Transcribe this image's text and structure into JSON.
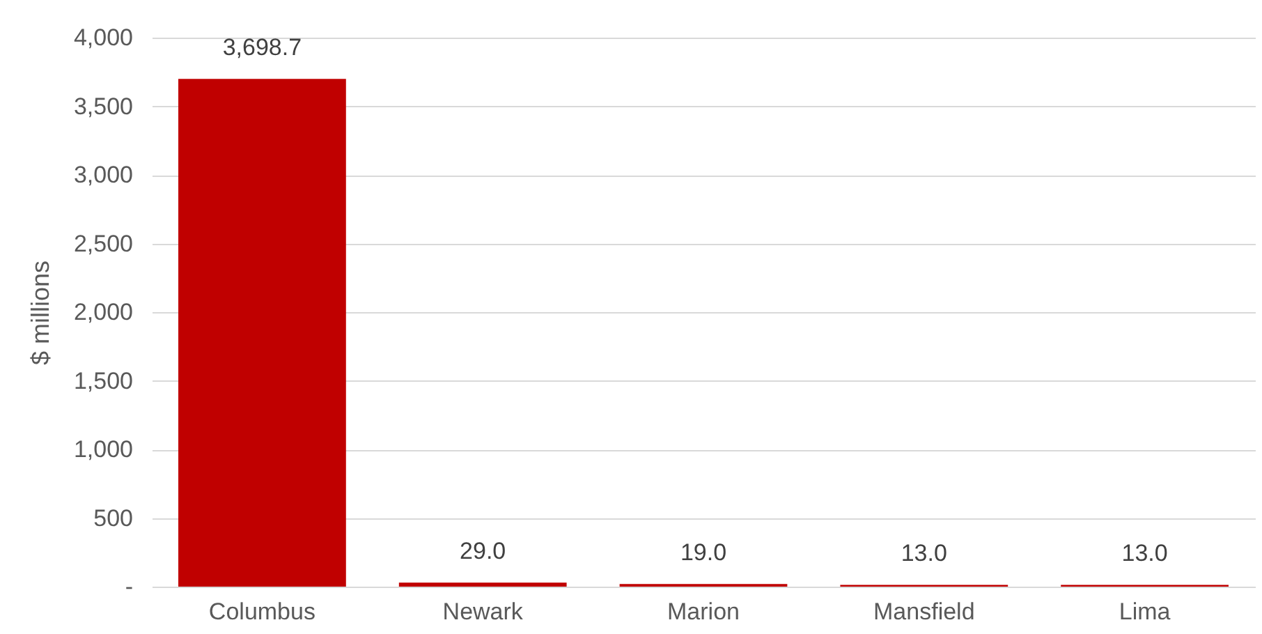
{
  "chart_data": {
    "type": "bar",
    "ylabel": "$ millions",
    "categories": [
      "Columbus",
      "Newark",
      "Marion",
      "Mansfield",
      "Lima"
    ],
    "values": [
      3698.7,
      29.0,
      19.0,
      13.0,
      13.0
    ],
    "value_labels": [
      "3,698.7",
      "29.0",
      "19.0",
      "13.0",
      "13.0"
    ],
    "color": "#c00000",
    "ylim": [
      0,
      4000
    ],
    "yticks": [
      {
        "value": 0,
        "label": "-"
      },
      500,
      {
        "value": 1000,
        "label": "1,000"
      },
      {
        "value": 1500,
        "label": "1,500"
      },
      {
        "value": 2000,
        "label": "2,000"
      },
      {
        "value": 2500,
        "label": "2,500"
      },
      {
        "value": 3000,
        "label": "3,000"
      },
      {
        "value": 3500,
        "label": "3,500"
      },
      {
        "value": 4000,
        "label": "4,000"
      }
    ],
    "grid": "y"
  }
}
